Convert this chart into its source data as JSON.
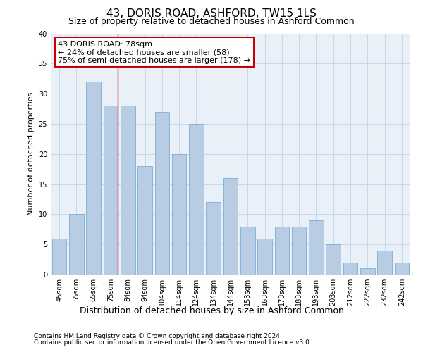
{
  "title": "43, DORIS ROAD, ASHFORD, TW15 1LS",
  "subtitle": "Size of property relative to detached houses in Ashford Common",
  "xlabel": "Distribution of detached houses by size in Ashford Common",
  "ylabel": "Number of detached properties",
  "categories": [
    "45sqm",
    "55sqm",
    "65sqm",
    "75sqm",
    "84sqm",
    "94sqm",
    "104sqm",
    "114sqm",
    "124sqm",
    "134sqm",
    "144sqm",
    "153sqm",
    "163sqm",
    "173sqm",
    "183sqm",
    "193sqm",
    "203sqm",
    "212sqm",
    "222sqm",
    "232sqm",
    "242sqm"
  ],
  "values": [
    6,
    10,
    32,
    28,
    28,
    18,
    27,
    20,
    25,
    12,
    16,
    8,
    6,
    8,
    8,
    9,
    5,
    2,
    1,
    4,
    2
  ],
  "bar_color": "#b8cce4",
  "bar_edge_color": "#7bafd4",
  "grid_color": "#c8d8e8",
  "bg_color": "#eaf0f8",
  "annotation_box_text": "43 DORIS ROAD: 78sqm\n← 24% of detached houses are smaller (58)\n75% of semi-detached houses are larger (178) →",
  "annotation_box_color": "#ffffff",
  "annotation_box_edge_color": "#cc0000",
  "red_line_x": 3,
  "ylim": [
    0,
    40
  ],
  "yticks": [
    0,
    5,
    10,
    15,
    20,
    25,
    30,
    35,
    40
  ],
  "footer_line1": "Contains HM Land Registry data © Crown copyright and database right 2024.",
  "footer_line2": "Contains public sector information licensed under the Open Government Licence v3.0.",
  "title_fontsize": 11,
  "subtitle_fontsize": 9,
  "xlabel_fontsize": 9,
  "ylabel_fontsize": 8,
  "tick_fontsize": 7,
  "annotation_fontsize": 8,
  "footer_fontsize": 6.5
}
